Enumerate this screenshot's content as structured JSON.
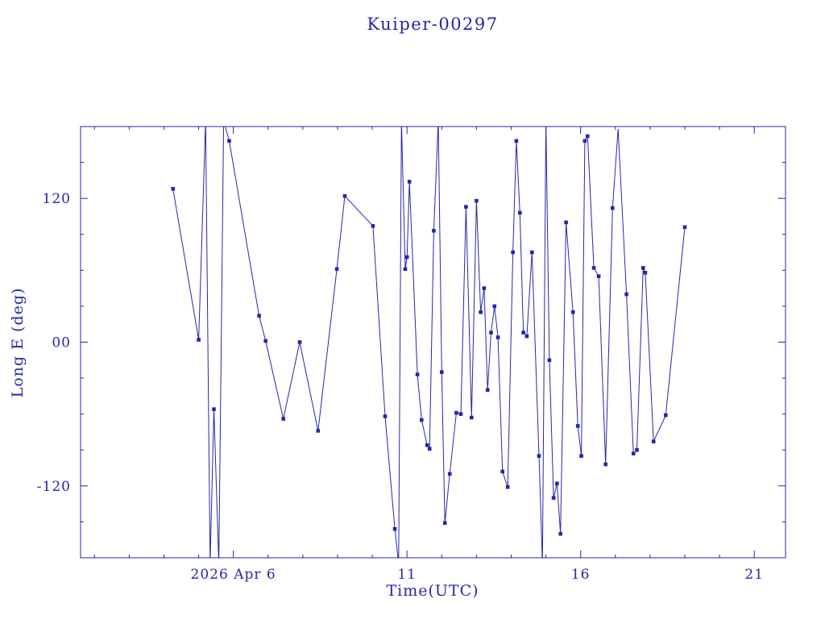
{
  "accent_color": "#2626aa",
  "figure": {
    "title": "Kuiper-00297",
    "xlabel": "Time(UTC)",
    "ylabel": "Long E (deg)"
  },
  "chart_data": {
    "type": "line",
    "title": "Kuiper-00297",
    "xlabel": "Time(UTC)",
    "ylabel": "Long E (deg)",
    "x_unit": "day of April 2026, UTC",
    "xlim": [
      1.6,
      21.9
    ],
    "ylim": [
      -180,
      180
    ],
    "grid": false,
    "legend": "none",
    "marker": "filled-square",
    "line_color": "#2626aa",
    "x_major_ticks": [
      {
        "value": 6,
        "label": "2026 Apr 6"
      },
      {
        "value": 11,
        "label": "11"
      },
      {
        "value": 16,
        "label": "16"
      },
      {
        "value": 21,
        "label": "21"
      }
    ],
    "x_minor_step": 1,
    "y_major_ticks": [
      {
        "value": 120,
        "label": "120"
      },
      {
        "value": 0,
        "label": "00"
      },
      {
        "value": -120,
        "label": "-120"
      }
    ],
    "y_minor_step": 30,
    "series": [
      {
        "name": "Long E (deg)",
        "points": [
          [
            4.26,
            128
          ],
          [
            5.0,
            2
          ],
          [
            5.2,
            185
          ],
          [
            5.33,
            -185
          ],
          [
            5.44,
            -56
          ],
          [
            5.58,
            -185
          ],
          [
            5.72,
            185
          ],
          [
            5.88,
            168
          ],
          [
            6.74,
            22
          ],
          [
            6.93,
            1
          ],
          [
            7.44,
            -64
          ],
          [
            7.91,
            0
          ],
          [
            8.44,
            -74
          ],
          [
            8.98,
            61
          ],
          [
            9.21,
            122
          ],
          [
            10.02,
            97
          ],
          [
            10.37,
            -62
          ],
          [
            10.65,
            -156
          ],
          [
            10.76,
            -185
          ],
          [
            10.84,
            185
          ],
          [
            10.95,
            61
          ],
          [
            11.0,
            71
          ],
          [
            11.07,
            134
          ],
          [
            11.3,
            -27
          ],
          [
            11.42,
            -65
          ],
          [
            11.58,
            -86
          ],
          [
            11.65,
            -89
          ],
          [
            11.77,
            93
          ],
          [
            11.9,
            185
          ],
          [
            12.0,
            -25
          ],
          [
            12.09,
            -151
          ],
          [
            12.23,
            -110
          ],
          [
            12.42,
            -59
          ],
          [
            12.55,
            -60
          ],
          [
            12.7,
            113
          ],
          [
            12.86,
            -63
          ],
          [
            13.0,
            118
          ],
          [
            13.12,
            25
          ],
          [
            13.22,
            45
          ],
          [
            13.32,
            -40
          ],
          [
            13.42,
            8
          ],
          [
            13.52,
            30
          ],
          [
            13.62,
            4
          ],
          [
            13.75,
            -108
          ],
          [
            13.9,
            -121
          ],
          [
            14.05,
            75
          ],
          [
            14.15,
            168
          ],
          [
            14.25,
            108
          ],
          [
            14.35,
            8
          ],
          [
            14.45,
            5
          ],
          [
            14.6,
            75
          ],
          [
            14.8,
            -95
          ],
          [
            14.9,
            -185
          ],
          [
            15.0,
            185
          ],
          [
            15.1,
            -15
          ],
          [
            15.22,
            -130
          ],
          [
            15.32,
            -118
          ],
          [
            15.42,
            -160
          ],
          [
            15.58,
            100
          ],
          [
            15.78,
            25
          ],
          [
            15.92,
            -70
          ],
          [
            16.02,
            -95
          ],
          [
            16.12,
            168
          ],
          [
            16.2,
            172
          ],
          [
            16.38,
            62
          ],
          [
            16.52,
            55
          ],
          [
            16.72,
            -102
          ],
          [
            16.92,
            112
          ],
          [
            17.08,
            178
          ],
          [
            17.32,
            40
          ],
          [
            17.52,
            -93
          ],
          [
            17.62,
            -90
          ],
          [
            17.8,
            62
          ],
          [
            17.86,
            58
          ],
          [
            18.1,
            -83
          ],
          [
            18.45,
            -61
          ],
          [
            19.0,
            96
          ]
        ]
      }
    ]
  }
}
